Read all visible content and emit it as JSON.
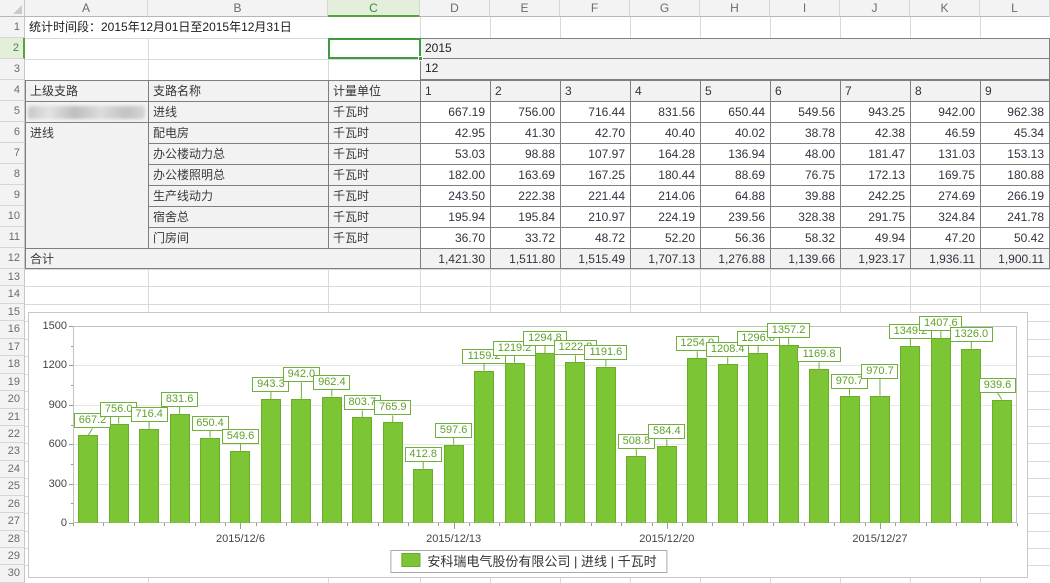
{
  "sheet": {
    "statistic_period": "统计时间段：2015年12月01日至2015年12月31日",
    "year_cell": "2015",
    "month_cell": "12",
    "columns": [
      "A",
      "B",
      "C",
      "D",
      "E",
      "F",
      "G",
      "H",
      "I",
      "J",
      "K",
      "L"
    ],
    "selected_column": "C",
    "selected_row": 2,
    "row_count": 30,
    "selection_color": "#3e9b41"
  },
  "table": {
    "headers": [
      "上级支路",
      "支路名称",
      "计量单位",
      "1",
      "2",
      "3",
      "4",
      "5",
      "6",
      "7",
      "8",
      "9"
    ],
    "rows": [
      {
        "parent_redacted": true,
        "name": "进线",
        "unit": "千瓦时",
        "values": [
          "667.19",
          "756.00",
          "716.44",
          "831.56",
          "650.44",
          "549.56",
          "943.25",
          "942.00",
          "962.38"
        ]
      },
      {
        "parent": "进线",
        "parent_rowspan": 6,
        "name": "配电房",
        "unit": "千瓦时",
        "values": [
          "42.95",
          "41.30",
          "42.70",
          "40.40",
          "40.02",
          "38.78",
          "42.38",
          "46.59",
          "45.34"
        ]
      },
      {
        "name": "办公楼动力总",
        "unit": "千瓦时",
        "values": [
          "53.03",
          "98.88",
          "107.97",
          "164.28",
          "136.94",
          "48.00",
          "181.47",
          "131.03",
          "153.13"
        ]
      },
      {
        "name": "办公楼照明总",
        "unit": "千瓦时",
        "values": [
          "182.00",
          "163.69",
          "167.25",
          "180.44",
          "88.69",
          "76.75",
          "172.13",
          "169.75",
          "180.88"
        ]
      },
      {
        "name": "生产线动力",
        "unit": "千瓦时",
        "values": [
          "243.50",
          "222.38",
          "221.44",
          "214.06",
          "64.88",
          "39.88",
          "242.25",
          "274.69",
          "266.19"
        ]
      },
      {
        "name": "宿舍总",
        "unit": "千瓦时",
        "values": [
          "195.94",
          "195.84",
          "210.97",
          "224.19",
          "239.56",
          "328.38",
          "291.75",
          "324.84",
          "241.78"
        ]
      },
      {
        "name": "门房间",
        "unit": "千瓦时",
        "values": [
          "36.70",
          "33.72",
          "48.72",
          "52.20",
          "56.36",
          "58.32",
          "49.94",
          "47.20",
          "50.42"
        ]
      }
    ],
    "total_label": "合计",
    "totals": [
      "1,421.30",
      "1,511.80",
      "1,515.49",
      "1,707.13",
      "1,276.88",
      "1,139.66",
      "1,923.17",
      "1,936.11",
      "1,900.11"
    ]
  },
  "chart_data": {
    "type": "bar",
    "title": "",
    "values": [
      667.2,
      756.0,
      716.4,
      831.6,
      650.4,
      549.6,
      943.3,
      942.0,
      962.4,
      803.7,
      765.9,
      412.8,
      597.6,
      1159.2,
      1219.2,
      1294.8,
      1222.8,
      1191.6,
      508.8,
      584.4,
      1254.0,
      1208.4,
      1296.0,
      1357.2,
      1169.8,
      970.7,
      970.7,
      1349.2,
      1407.6,
      1326.0,
      939.6
    ],
    "bar_labels": [
      "667.2",
      "756.0",
      "716.4",
      "831.6",
      "650.4",
      "549.6",
      "943.3",
      "942.0",
      "962.4",
      "803.7",
      "765.9",
      "412.8",
      "597.6",
      "1159.2",
      "1219.2",
      "1294.8",
      "1222.8",
      "1191.6",
      "508.8",
      "584.4",
      "1254.0",
      "1208.4",
      "1296.0",
      "1357.2",
      "1169.8",
      "970.7",
      "970.7",
      "1349.2",
      "1407.6",
      "1326.0",
      "939.6"
    ],
    "y_ticks": [
      0,
      300,
      600,
      900,
      1200,
      1500
    ],
    "ylim": [
      0,
      1500
    ],
    "x_ticks": [
      {
        "index": 5,
        "label": "2015/12/6"
      },
      {
        "index": 12,
        "label": "2015/12/13"
      },
      {
        "index": 19,
        "label": "2015/12/20"
      },
      {
        "index": 26,
        "label": "2015/12/27"
      }
    ],
    "grid": true,
    "legend_position": "bottom",
    "series": [
      {
        "name": "安科瑞电气股份有限公司 | 进线 | 千瓦时",
        "color": "#7cc636"
      }
    ]
  }
}
